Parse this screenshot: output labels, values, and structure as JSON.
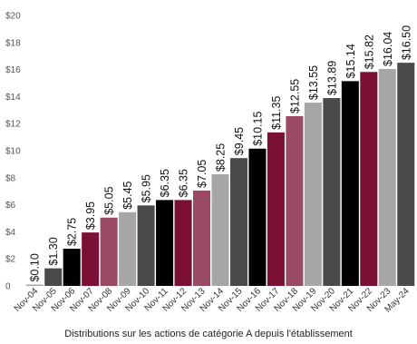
{
  "chart_data": {
    "type": "bar",
    "title": "",
    "xlabel": "Distributions sur les actions de catégorie A depuis l'établissement",
    "ylabel": "",
    "ylim": [
      0,
      20
    ],
    "yticks": [
      "0",
      "$2",
      "$4",
      "$6",
      "$8",
      "$10",
      "$12",
      "$14",
      "$16",
      "$18",
      "$20"
    ],
    "categories": [
      "Nov-04",
      "Nov-05",
      "Nov-06",
      "Nov-07",
      "Nov-08",
      "Nov-09",
      "Nov-10",
      "Nov-11",
      "Nov-12",
      "Nov-13",
      "Nov-14",
      "Nov-15",
      "Nov-16",
      "Nov-17",
      "Nov-18",
      "Nov-19",
      "Nov-20",
      "Nov-21",
      "Nov-22",
      "Nov-23",
      "May-24"
    ],
    "values": [
      0.1,
      1.3,
      2.75,
      3.95,
      5.05,
      5.45,
      5.95,
      6.35,
      6.35,
      7.05,
      8.25,
      9.45,
      10.15,
      11.35,
      12.55,
      13.55,
      13.89,
      15.14,
      15.82,
      16.04,
      16.5
    ],
    "data_labels": [
      "$0.10",
      "$1.30",
      "$2.75",
      "$3.95",
      "$5.05",
      "$5.45",
      "$5.95",
      "$6.35",
      "$6.35",
      "$7.05",
      "$8.25",
      "$9.45",
      "$10.15",
      "$11.35",
      "$12.55",
      "$13.55",
      "$13.89",
      "$15.14",
      "$15.82",
      "$16.04",
      "$16.50"
    ],
    "bar_colors": [
      "#a6a6a6",
      "#4a4a4a",
      "#000000",
      "#7a1035",
      "#9a4a63",
      "#a6a6a6",
      "#4a4a4a",
      "#000000",
      "#7a1035",
      "#9a4a63",
      "#a6a6a6",
      "#4a4a4a",
      "#000000",
      "#7a1035",
      "#9a4a63",
      "#a6a6a6",
      "#4a4a4a",
      "#000000",
      "#7a1035",
      "#a6a6a6",
      "#4a4a4a"
    ],
    "grid": false,
    "legend": "none"
  }
}
